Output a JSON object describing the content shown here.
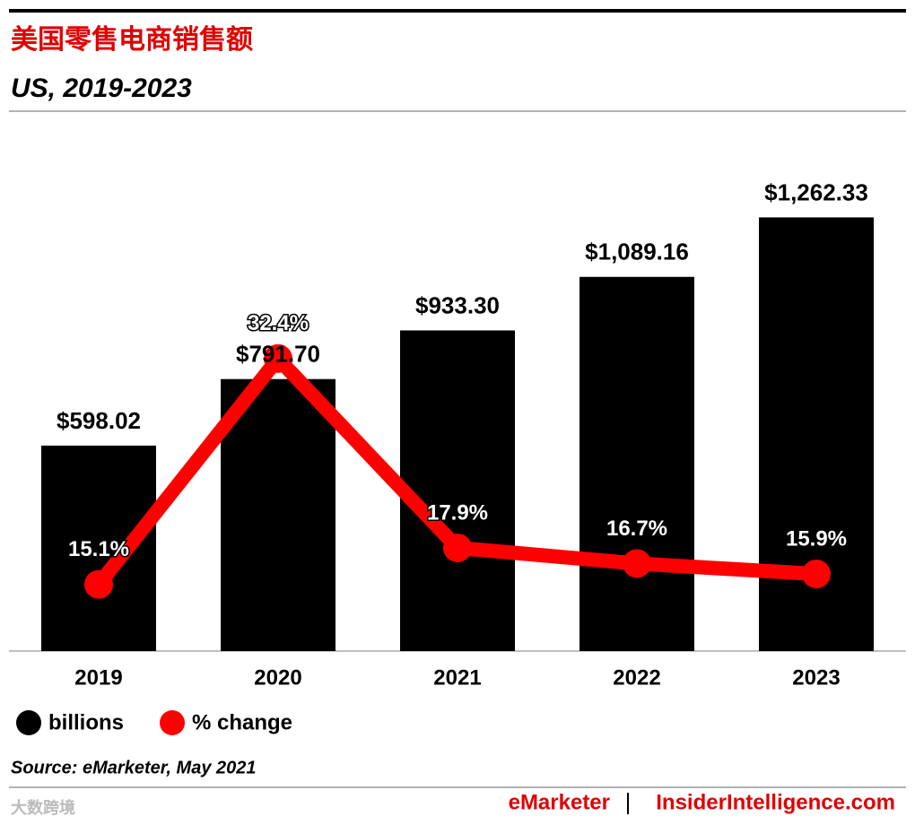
{
  "chart_data": {
    "type": "bar",
    "title": "美国零售电商销售额",
    "subtitle": "US, 2019-2023",
    "categories": [
      "2019",
      "2020",
      "2021",
      "2022",
      "2023"
    ],
    "series": [
      {
        "name": "billions",
        "type": "bar",
        "color": "#000000",
        "values": [
          598.02,
          791.7,
          933.3,
          1089.16,
          1262.33
        ],
        "value_labels": [
          "$598.02",
          "$791.70",
          "$933.30",
          "$1,089.16",
          "$1,262.33"
        ]
      },
      {
        "name": "% change",
        "type": "line",
        "color": "#ff0000",
        "axis": "y2",
        "values": [
          15.1,
          32.4,
          17.9,
          16.7,
          15.9
        ],
        "value_labels": [
          "15.1%",
          "32.4%",
          "17.9%",
          "16.7%",
          "15.9%"
        ]
      }
    ],
    "ylim": [
      0,
      1300
    ],
    "y2lim": [
      10,
      44.2
    ],
    "source": "Source: eMarketer, May 2021",
    "footer_left": "eMarketer",
    "footer_right": "InsiderIntelligence.com",
    "watermark": "大数跨境"
  }
}
